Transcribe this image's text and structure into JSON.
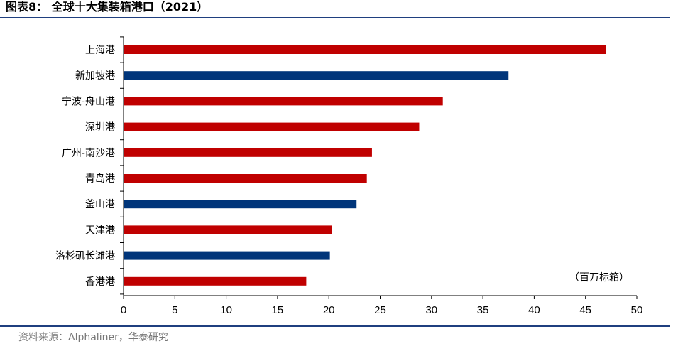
{
  "header": {
    "title": "图表8：  全球十大集装箱港口（2021）"
  },
  "footer": {
    "source": "资料来源：Alphaliner，华泰研究"
  },
  "colors": {
    "red": "#c00000",
    "blue": "#00357a",
    "rule": "#1f3f7f",
    "axis": "#000000",
    "source_text": "#777777"
  },
  "chart_data": {
    "type": "bar",
    "orientation": "horizontal",
    "title": "",
    "xlabel": "",
    "ylabel": "",
    "unit_label": "（百万标箱）",
    "xlim": [
      0,
      50
    ],
    "xticks": [
      0,
      5,
      10,
      15,
      20,
      25,
      30,
      35,
      40,
      45,
      50
    ],
    "grid": false,
    "legend": "none",
    "categories": [
      "上海港",
      "新加坡港",
      "宁波-舟山港",
      "深圳港",
      "广州-南沙港",
      "青岛港",
      "釜山港",
      "天津港",
      "洛杉矶长滩港",
      "香港港"
    ],
    "values": [
      47.0,
      37.5,
      31.1,
      28.8,
      24.2,
      23.7,
      22.7,
      20.3,
      20.1,
      17.8
    ],
    "bar_colors": [
      "red",
      "blue",
      "red",
      "red",
      "red",
      "red",
      "blue",
      "red",
      "blue",
      "red"
    ]
  }
}
